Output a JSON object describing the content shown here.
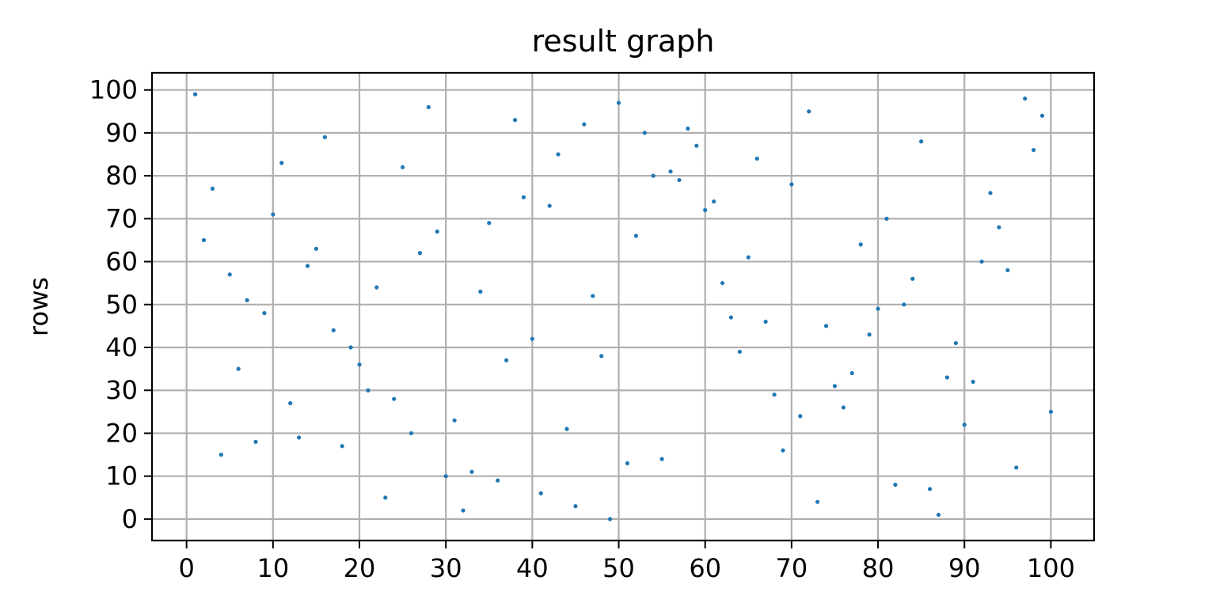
{
  "chart_data": {
    "type": "scatter",
    "title": "result graph",
    "xlabel": "",
    "ylabel": "rows",
    "xlim": [
      -4,
      105
    ],
    "ylim": [
      -5,
      104
    ],
    "xticks": [
      0,
      10,
      20,
      30,
      40,
      50,
      60,
      70,
      80,
      90,
      100
    ],
    "yticks": [
      0,
      10,
      20,
      30,
      40,
      50,
      60,
      70,
      80,
      90,
      100
    ],
    "grid": true,
    "point_color": "#1f77b4",
    "points": [
      [
        1,
        99
      ],
      [
        2,
        65
      ],
      [
        3,
        77
      ],
      [
        4,
        15
      ],
      [
        5,
        57
      ],
      [
        6,
        35
      ],
      [
        7,
        51
      ],
      [
        8,
        18
      ],
      [
        9,
        48
      ],
      [
        10,
        71
      ],
      [
        11,
        83
      ],
      [
        12,
        27
      ],
      [
        13,
        19
      ],
      [
        14,
        59
      ],
      [
        15,
        63
      ],
      [
        16,
        89
      ],
      [
        17,
        44
      ],
      [
        18,
        17
      ],
      [
        19,
        40
      ],
      [
        20,
        36
      ],
      [
        21,
        30
      ],
      [
        22,
        54
      ],
      [
        23,
        5
      ],
      [
        24,
        28
      ],
      [
        25,
        82
      ],
      [
        26,
        20
      ],
      [
        27,
        62
      ],
      [
        28,
        96
      ],
      [
        29,
        67
      ],
      [
        30,
        10
      ],
      [
        31,
        23
      ],
      [
        32,
        2
      ],
      [
        33,
        11
      ],
      [
        34,
        53
      ],
      [
        35,
        69
      ],
      [
        36,
        9
      ],
      [
        37,
        37
      ],
      [
        38,
        93
      ],
      [
        39,
        75
      ],
      [
        40,
        42
      ],
      [
        41,
        6
      ],
      [
        42,
        73
      ],
      [
        43,
        85
      ],
      [
        44,
        21
      ],
      [
        45,
        3
      ],
      [
        46,
        92
      ],
      [
        47,
        52
      ],
      [
        48,
        38
      ],
      [
        49,
        0
      ],
      [
        50,
        97
      ],
      [
        51,
        13
      ],
      [
        52,
        66
      ],
      [
        53,
        90
      ],
      [
        54,
        80
      ],
      [
        55,
        14
      ],
      [
        56,
        81
      ],
      [
        57,
        79
      ],
      [
        58,
        91
      ],
      [
        59,
        87
      ],
      [
        60,
        72
      ],
      [
        61,
        74
      ],
      [
        62,
        55
      ],
      [
        63,
        47
      ],
      [
        64,
        39
      ],
      [
        65,
        61
      ],
      [
        66,
        84
      ],
      [
        67,
        46
      ],
      [
        68,
        29
      ],
      [
        69,
        16
      ],
      [
        70,
        78
      ],
      [
        71,
        24
      ],
      [
        72,
        95
      ],
      [
        73,
        4
      ],
      [
        74,
        45
      ],
      [
        75,
        31
      ],
      [
        76,
        26
      ],
      [
        77,
        34
      ],
      [
        78,
        64
      ],
      [
        79,
        43
      ],
      [
        80,
        49
      ],
      [
        81,
        70
      ],
      [
        82,
        8
      ],
      [
        83,
        50
      ],
      [
        84,
        56
      ],
      [
        85,
        88
      ],
      [
        86,
        7
      ],
      [
        87,
        1
      ],
      [
        88,
        33
      ],
      [
        89,
        41
      ],
      [
        90,
        22
      ],
      [
        91,
        32
      ],
      [
        92,
        60
      ],
      [
        93,
        76
      ],
      [
        94,
        68
      ],
      [
        95,
        58
      ],
      [
        96,
        12
      ],
      [
        97,
        98
      ],
      [
        98,
        86
      ],
      [
        99,
        94
      ],
      [
        100,
        25
      ]
    ]
  }
}
